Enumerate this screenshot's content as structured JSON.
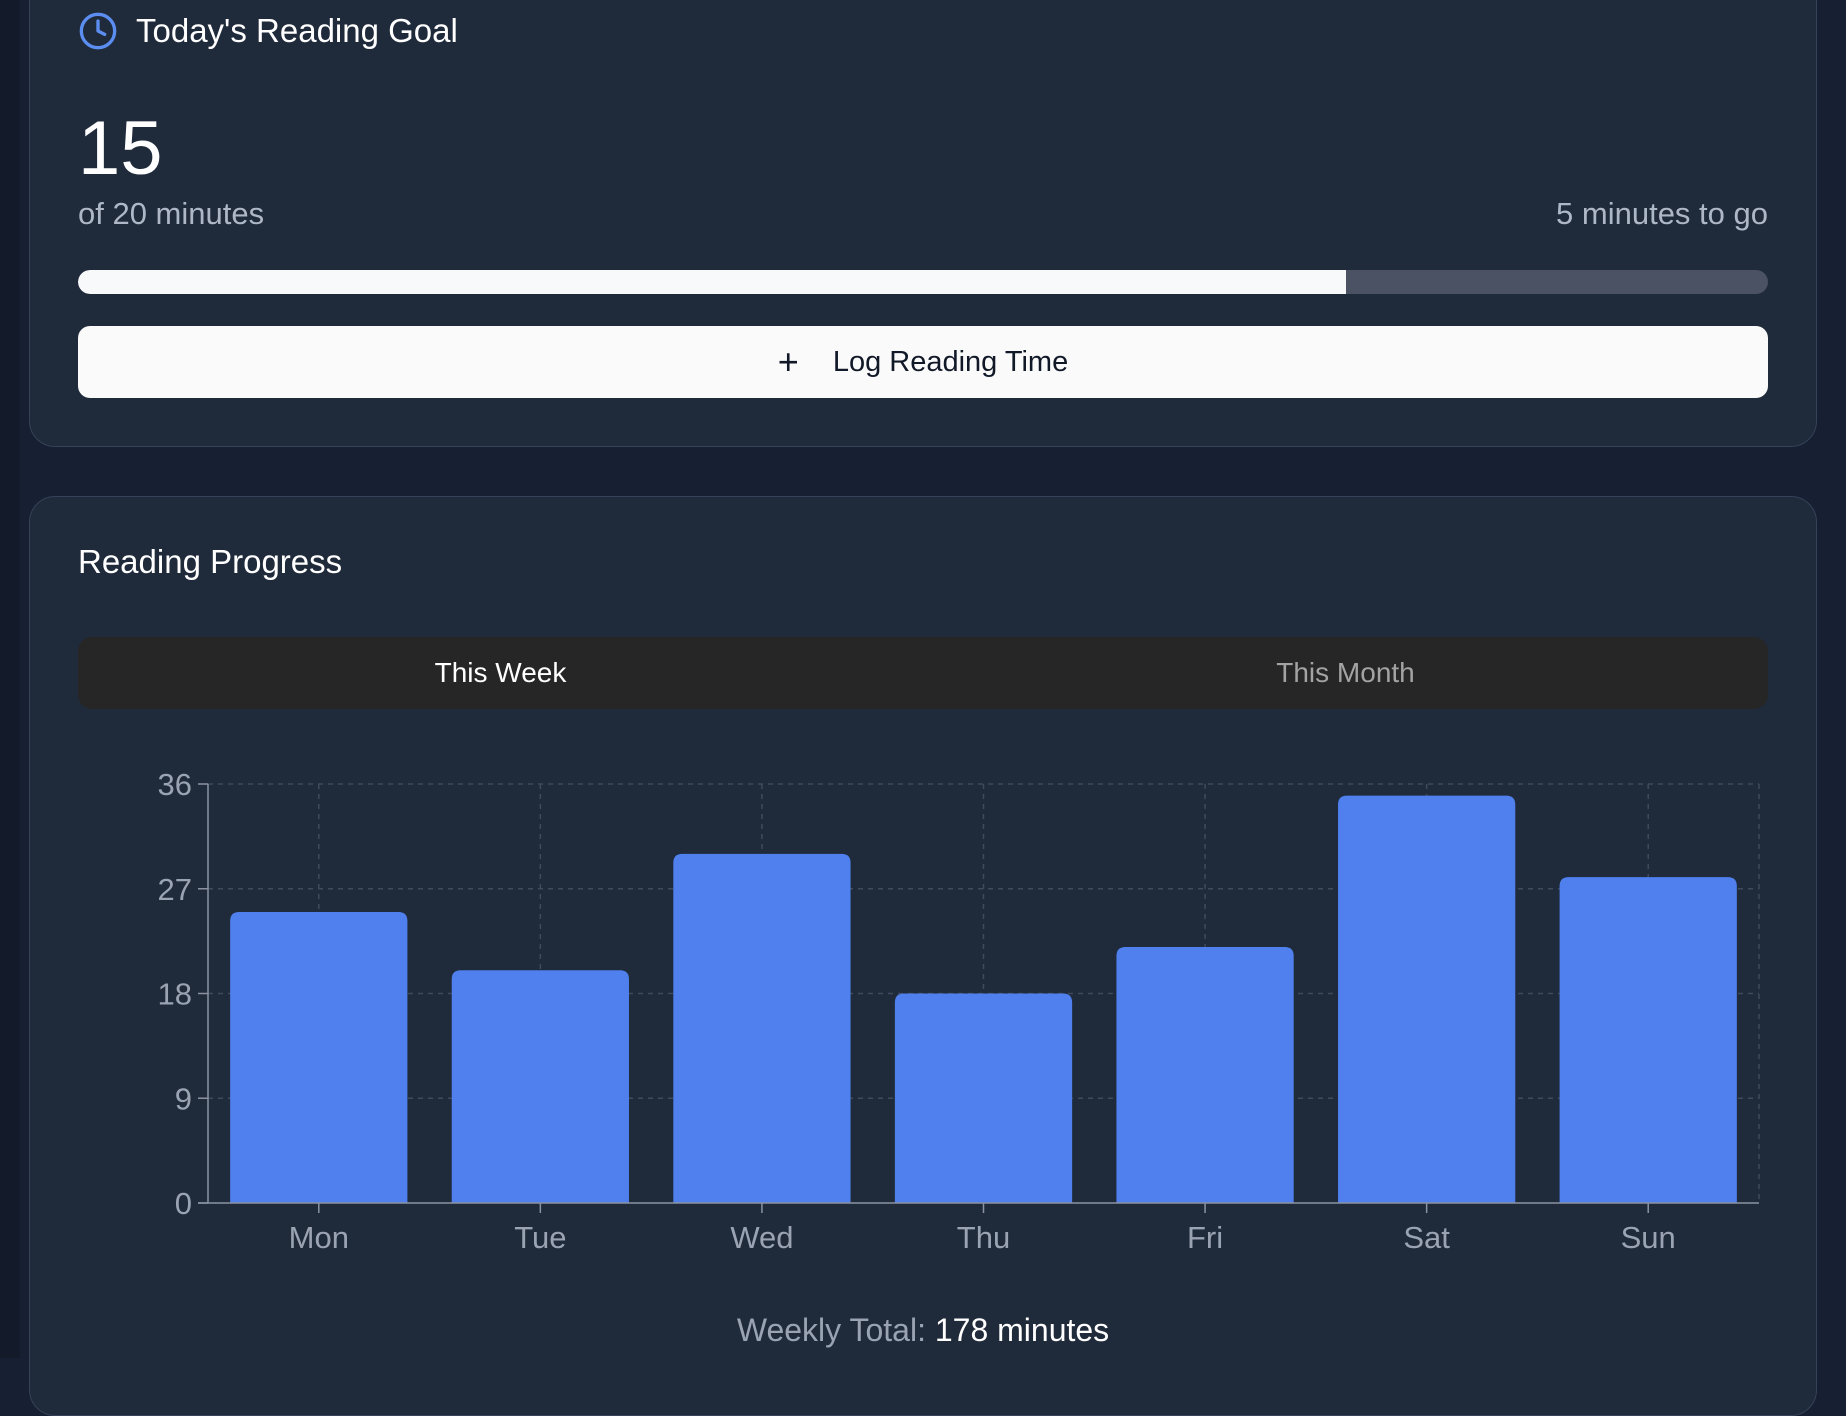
{
  "goal": {
    "title": "Today's Reading Goal",
    "current": "15",
    "of_text": "of 20 minutes",
    "remaining_text": "5 minutes to go",
    "progress_fraction": 0.75,
    "log_button_label": "Log Reading Time"
  },
  "progress": {
    "title": "Reading Progress",
    "tabs": [
      {
        "label": "This Week",
        "active": true
      },
      {
        "label": "This Month",
        "active": false
      }
    ],
    "weekly_total_label": "Weekly Total:",
    "weekly_total_value": "178 minutes"
  },
  "colors": {
    "accent": "#4f80ee",
    "clock_icon": "#5b8ef0"
  },
  "icons": {
    "goal": "clock-icon",
    "log": "plus-icon"
  },
  "chart_data": {
    "type": "bar",
    "categories": [
      "Mon",
      "Tue",
      "Wed",
      "Thu",
      "Fri",
      "Sat",
      "Sun"
    ],
    "values": [
      25,
      20,
      30,
      18,
      22,
      35,
      28
    ],
    "yticks": [
      0,
      9,
      18,
      27,
      36
    ],
    "ylim": [
      0,
      36
    ],
    "grid": true,
    "title": "",
    "xlabel": "",
    "ylabel": ""
  }
}
